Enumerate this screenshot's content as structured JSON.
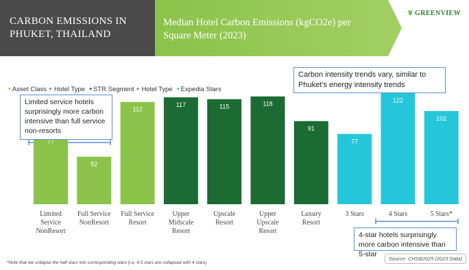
{
  "header": {
    "title_line1": "CARBON EMISSIONS IN",
    "title_line2": "PHUKET, THAILAND",
    "subtitle": "Median Hotel Carbon Emissions (kgCO2e) per Square Meter (2023)",
    "logo": "GREENVIEW",
    "logo_icon": "leaf-icon"
  },
  "legend": [
    {
      "label": "Asset Class + Hotel Type",
      "color": "#8bc34a"
    },
    {
      "label": "STR Segment + Hotel Type",
      "color": "#1b6b33"
    },
    {
      "label": "Expedia Stars",
      "color": "#26c6da"
    }
  ],
  "callouts": {
    "top_right": "Carbon intensity trends vary, similar to Phuket’s energy intensity trends",
    "left": "Limited service hotels surprisingly more carbon intensive than full service non-resorts",
    "bottom_right": "4-star hotels surprisingly more carbon intensive than 5-star"
  },
  "source": "Source: CHSB2025 (2023 Data)",
  "footnote": "*Note that we collapse the half stars into corresponding stars (i.e. 4.5 stars are collapsed with 4 stars)",
  "chart_data": {
    "type": "bar",
    "title": "Median Hotel Carbon Emissions (kgCO2e) per Square Meter (2023)",
    "xlabel": "",
    "ylabel": "",
    "ylim": [
      0,
      130
    ],
    "grid": false,
    "categories": [
      "Limited Service NonResort",
      "Full Service NonResort",
      "Full Service Resort",
      "Upper Midscale Resort",
      "Upscale Resort",
      "Upper Upscale Resort",
      "Luxury Resort",
      "3 Stars",
      "4 Stars",
      "5 Stars*"
    ],
    "label_lines": [
      [
        "Limited",
        "Service",
        "NonResort"
      ],
      [
        "Full Service",
        "NonResort"
      ],
      [
        "Full Service",
        "Resort"
      ],
      [
        "Upper",
        "Midscale",
        "Resort"
      ],
      [
        "Upscale",
        "Resort"
      ],
      [
        "Upper",
        "Upscale",
        "Resort"
      ],
      [
        "Luxury",
        "Resort"
      ],
      [
        "3 Stars"
      ],
      [
        "4 Stars"
      ],
      [
        "5 Stars*"
      ]
    ],
    "values": [
      77,
      52,
      112,
      117,
      115,
      118,
      91,
      77,
      122,
      102
    ],
    "groups": [
      "Asset Class + Hotel Type",
      "Asset Class + Hotel Type",
      "Asset Class + Hotel Type",
      "STR Segment + Hotel Type",
      "STR Segment + Hotel Type",
      "STR Segment + Hotel Type",
      "STR Segment + Hotel Type",
      "Expedia Stars",
      "Expedia Stars",
      "Expedia Stars"
    ],
    "colors": [
      "#8bc34a",
      "#8bc34a",
      "#8bc34a",
      "#1b6b33",
      "#1b6b33",
      "#1b6b33",
      "#1b6b33",
      "#26c6da",
      "#26c6da",
      "#26c6da"
    ]
  }
}
